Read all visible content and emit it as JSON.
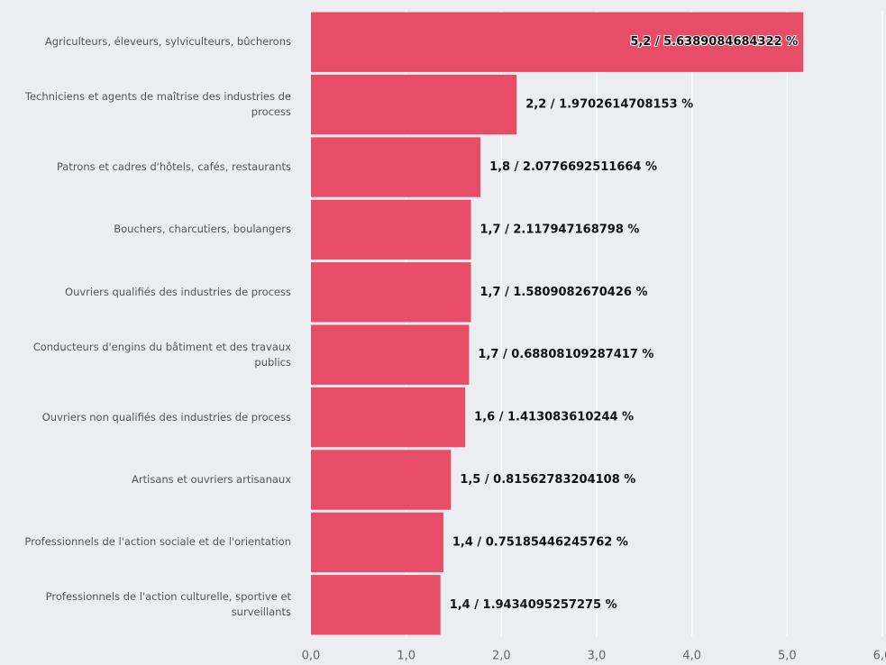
{
  "chart_data": {
    "type": "bar",
    "orientation": "horizontal",
    "color": "#e84d68",
    "grid": true,
    "categories": [
      "Agriculteurs, éleveurs, sylviculteurs, bûcherons",
      "Techniciens et agents de maîtrise des industries de process",
      "Patrons et cadres d'hôtels, cafés, restaurants",
      "Bouchers, charcutiers, boulangers",
      "Ouvriers qualifiés des industries de process",
      "Conducteurs d'engins du bâtiment et des travaux publics",
      "Ouvriers non qualifiés des industries de process",
      "Artisans et ouvriers artisanaux",
      "Professionnels de l'action sociale et de l'orientation",
      "Professionnels de l'action culturelle, sportive et surveillants"
    ],
    "values": [
      5.17,
      2.16,
      1.78,
      1.68,
      1.68,
      1.66,
      1.62,
      1.47,
      1.39,
      1.36
    ],
    "value_labels": [
      "5,2 / 5.6389084684322 %",
      "2,2 / 1.9702614708153 %",
      "1,8 / 2.0776692511664 %",
      "1,7 / 2.117947168798 %",
      "1,7 / 1.5809082670426 %",
      "1,7 / 0.68808109287417 %",
      "1,6 / 1.413083610244 %",
      "1,5 / 0.81562783204108 %",
      "1,4 / 0.75185446245762 %",
      "1,4 / 1.9434095257275 %"
    ],
    "xlim": [
      0,
      6
    ],
    "xticks": [
      {
        "value": 0,
        "label": "0,0"
      },
      {
        "value": 1,
        "label": "1,0"
      },
      {
        "value": 2,
        "label": "2,0"
      },
      {
        "value": 3,
        "label": "3,0"
      },
      {
        "value": 4,
        "label": "4,0"
      },
      {
        "value": 5,
        "label": "5,0"
      },
      {
        "value": 6,
        "label": "6,0"
      }
    ]
  }
}
